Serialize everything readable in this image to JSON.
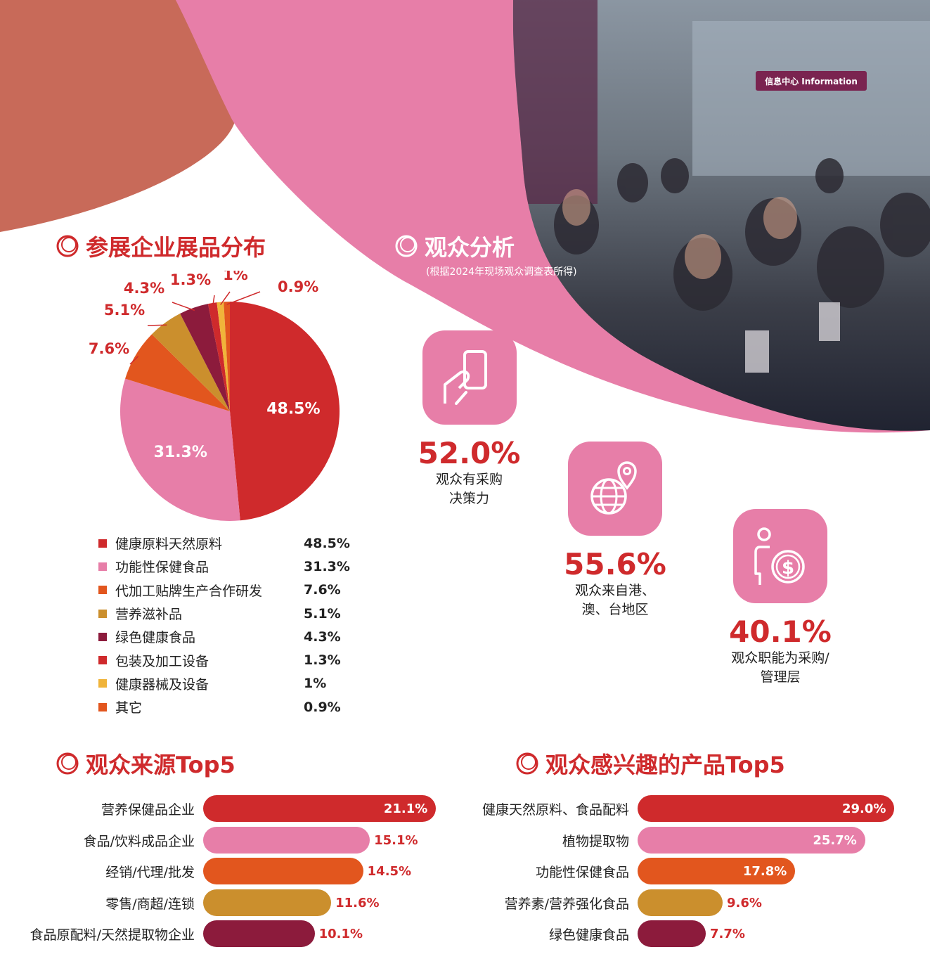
{
  "colors": {
    "red": "#cf2a2c",
    "pink": "#e77ea8",
    "orange": "#e2561e",
    "gold": "#cb8f2d",
    "maroon": "#8c1b3c",
    "yellow": "#f0b43a",
    "terracotta": "#c86a59"
  },
  "headings": {
    "exhibits": "参展企业展品分布",
    "audience": "观众分析",
    "audience_note": "(根据2024年现场观众调查表所得)",
    "sources": "观众来源Top5",
    "interests": "观众感兴趣的产品Top5"
  },
  "photo": {
    "sign_text": "信息中心 Information"
  },
  "stats": [
    {
      "icon": "card-hand-icon",
      "value": "52.0%",
      "label_line1": "观众有采购",
      "label_line2": "决策力"
    },
    {
      "icon": "globe-pin-icon",
      "value": "55.6%",
      "label_line1": "观众来自港、",
      "label_line2": "澳、台地区"
    },
    {
      "icon": "person-dollar-icon",
      "value": "40.1%",
      "label_line1": "观众职能为采购/",
      "label_line2": "管理层"
    }
  ],
  "chart_data": [
    {
      "type": "pie",
      "title": "参展企业展品分布",
      "slices": [
        {
          "name": "健康原料天然原料",
          "value": 48.5,
          "label": "48.5%",
          "color": "#cf2a2c"
        },
        {
          "name": "功能性保健食品",
          "value": 31.3,
          "label": "31.3%",
          "color": "#e77ea8"
        },
        {
          "name": "代加工贴牌生产合作研发",
          "value": 7.6,
          "label": "7.6%",
          "color": "#e2561e"
        },
        {
          "name": "营养滋补品",
          "value": 5.1,
          "label": "5.1%",
          "color": "#cb8f2d"
        },
        {
          "name": "绿色健康食品",
          "value": 4.3,
          "label": "4.3%",
          "color": "#8c1b3c"
        },
        {
          "name": "包装及加工设备",
          "value": 1.3,
          "label": "1.3%",
          "color": "#cf2a2c"
        },
        {
          "name": "健康器械及设备",
          "value": 1.0,
          "label": "1%",
          "color": "#f0b43a"
        },
        {
          "name": "其它",
          "value": 0.9,
          "label": "0.9%",
          "color": "#e2561e"
        }
      ]
    },
    {
      "type": "bar",
      "title": "观众来源Top5",
      "categories": [
        "营养保健品企业",
        "食品/饮料成品企业",
        "经销/代理/批发",
        "零售/商超/连锁",
        "食品原配料/天然提取物企业"
      ],
      "values": [
        21.1,
        15.1,
        14.5,
        11.6,
        10.1
      ],
      "labels": [
        "21.1%",
        "15.1%",
        "14.5%",
        "11.6%",
        "10.1%"
      ],
      "colors": [
        "#cf2a2c",
        "#e77ea8",
        "#e2561e",
        "#cb8f2d",
        "#8c1b3c"
      ]
    },
    {
      "type": "bar",
      "title": "观众感兴趣的产品Top5",
      "categories": [
        "健康天然原料、食品配料",
        "植物提取物",
        "功能性保健食品",
        "营养素/营养强化食品",
        "绿色健康食品"
      ],
      "values": [
        29.0,
        25.7,
        17.8,
        9.6,
        7.7
      ],
      "labels": [
        "29.0%",
        "25.7%",
        "17.8%",
        "9.6%",
        "7.7%"
      ],
      "colors": [
        "#cf2a2c",
        "#e77ea8",
        "#e2561e",
        "#cb8f2d",
        "#8c1b3c"
      ]
    }
  ]
}
